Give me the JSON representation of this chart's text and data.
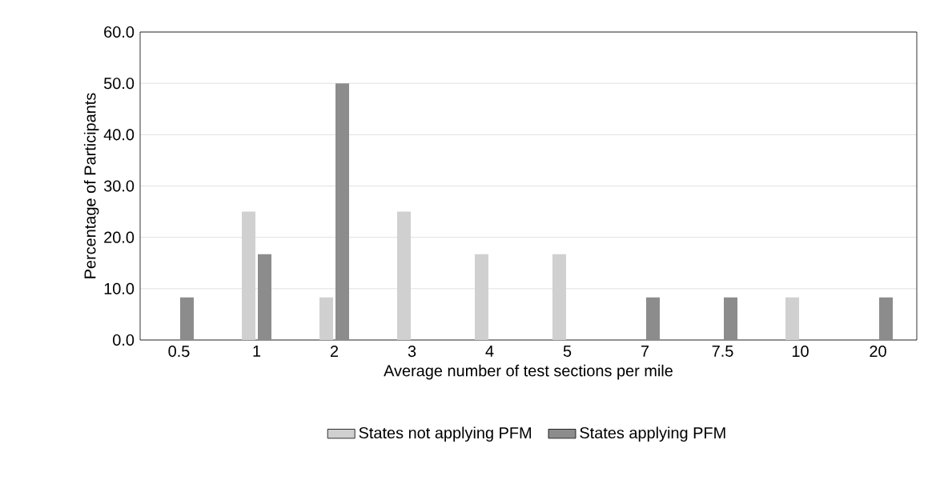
{
  "chart_data": {
    "type": "bar",
    "xlabel": "Average number of test sections per mile",
    "ylabel": "Percentage of Participants",
    "categories": [
      "0.5",
      "1",
      "2",
      "3",
      "4",
      "5",
      "7",
      "7.5",
      "10",
      "20"
    ],
    "series": [
      {
        "name": "States not applying PFM",
        "color": "#d0d0d0",
        "values": [
          0,
          25,
          8.3,
          25,
          16.7,
          16.7,
          0,
          0,
          8.3,
          0
        ]
      },
      {
        "name": "States applying PFM",
        "color": "#8c8c8c",
        "values": [
          8.3,
          16.7,
          50,
          0,
          0,
          0,
          8.3,
          8.3,
          0,
          8.3
        ]
      }
    ],
    "ylim": [
      0,
      60
    ],
    "yticks": [
      {
        "value": 0,
        "label": "0.0"
      },
      {
        "value": 10,
        "label": "10.0"
      },
      {
        "value": 20,
        "label": "20.0"
      },
      {
        "value": 30,
        "label": "30.0"
      },
      {
        "value": 40,
        "label": "40.0"
      },
      {
        "value": 50,
        "label": "50.0"
      },
      {
        "value": 60,
        "label": "60.0"
      }
    ],
    "grid": "y",
    "legend": "bottom"
  }
}
